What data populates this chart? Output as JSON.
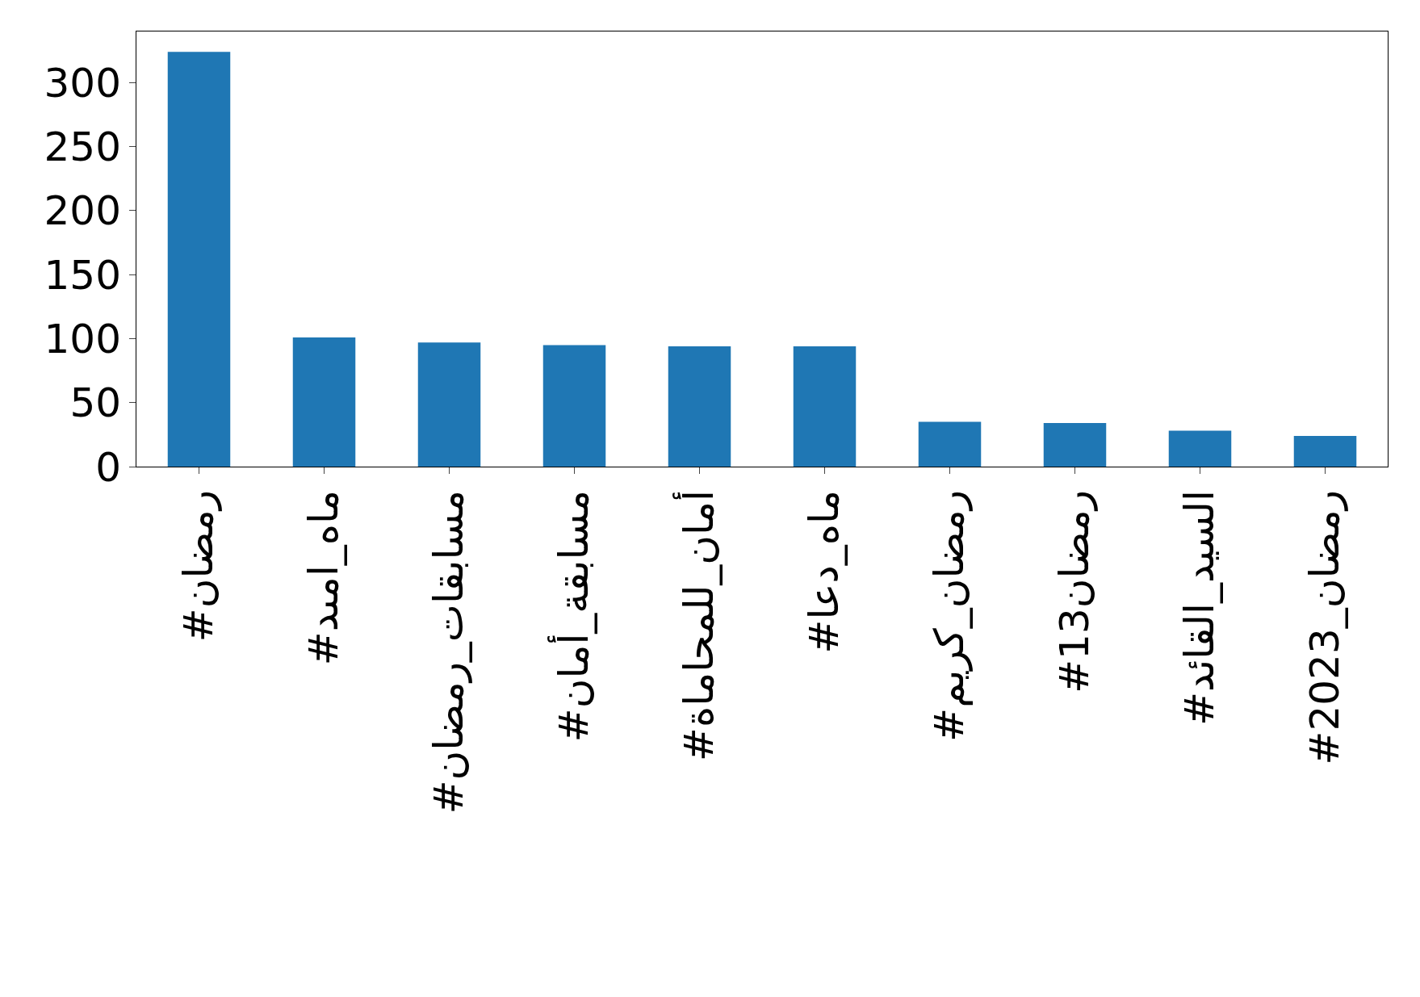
{
  "chart_data": {
    "type": "bar",
    "categories": [
      "#رمضان",
      "#ماه_امىد",
      "#مسابقات_رمضان",
      "#مسابقة_أمان",
      "#أمان_للمحاماة",
      "#ماه_دعا",
      "#رمضان_كريم",
      "#رمضان13",
      "#السيد_القائد",
      "#رمضان_2023"
    ],
    "values": [
      324,
      101,
      97,
      95,
      94,
      94,
      35,
      34,
      28,
      24
    ],
    "color": "#1f77b4",
    "ylim": [
      0,
      340
    ],
    "yticks": [
      0,
      50,
      100,
      150,
      200,
      250,
      300
    ]
  }
}
